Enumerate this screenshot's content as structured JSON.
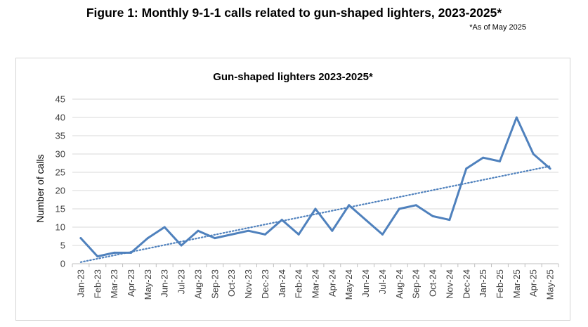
{
  "figure": {
    "title": "Figure 1: Monthly 9-1-1 calls related to gun-shaped lighters, 2023-2025*",
    "note": "*As of May 2025"
  },
  "chart_data": {
    "type": "line",
    "title": "Gun-shaped lighters 2023-2025*",
    "xlabel": "",
    "ylabel": "Number of calls",
    "ylim": [
      0,
      45
    ],
    "yticks": [
      0,
      5,
      10,
      15,
      20,
      25,
      30,
      35,
      40,
      45
    ],
    "grid": true,
    "legend": "none",
    "categories": [
      "Jan-23",
      "Feb-23",
      "Mar-23",
      "Apr-23",
      "May-23",
      "Jun-23",
      "Jul-23",
      "Aug-23",
      "Sep-23",
      "Oct-23",
      "Nov-23",
      "Dec-23",
      "Jan-24",
      "Feb-24",
      "Mar-24",
      "Apr-24",
      "May-24",
      "Jun-24",
      "Jul-24",
      "Aug-24",
      "Sep-24",
      "Oct-24",
      "Nov-24",
      "Dec-24",
      "Jan-25",
      "Feb-25",
      "Mar-25",
      "Apr-25",
      "May-25"
    ],
    "series": [
      {
        "values": [
          7,
          2,
          3,
          3,
          7,
          10,
          5,
          9,
          7,
          8,
          9,
          8,
          12,
          8,
          15,
          9,
          16,
          12,
          8,
          15,
          16,
          13,
          12,
          26,
          29,
          28,
          40,
          30,
          26
        ],
        "color": "#4f81bd"
      }
    ],
    "trendline": {
      "type": "linear",
      "style": "dotted",
      "color": "#4f81bd"
    }
  }
}
